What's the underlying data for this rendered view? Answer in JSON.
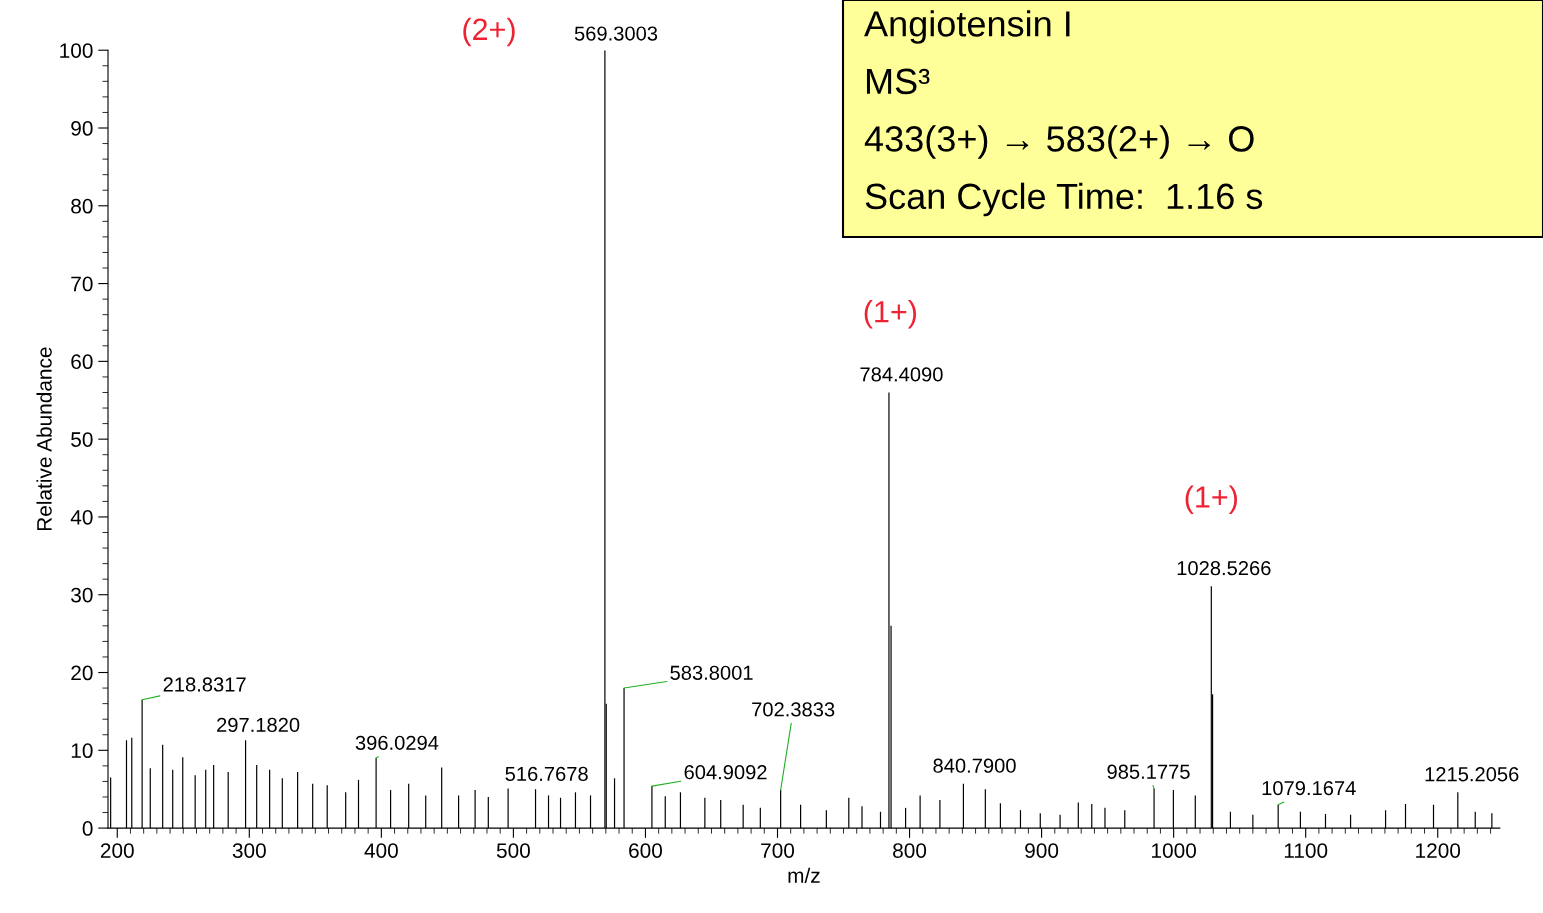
{
  "chart_data": {
    "type": "bar",
    "xlabel": "m/z",
    "ylabel": "Relative Abundance",
    "color": "#000000",
    "x": [
      195,
      207,
      211,
      218.8317,
      225,
      234.4,
      242,
      249.6,
      259,
      267,
      273,
      284,
      297.182,
      305.6,
      315.4,
      325,
      336.6,
      348,
      359,
      373,
      382.7,
      396.0294,
      407,
      420.7,
      433.6,
      445.7,
      458.5,
      471,
      481,
      496,
      516.7678,
      526.6,
      535.7,
      547,
      558.4,
      569.3003,
      570.3,
      576.6,
      583.8001,
      604.9092,
      615,
      626.5,
      645,
      657,
      674,
      687,
      702.3833,
      717.5,
      737,
      754,
      764,
      778,
      784.409,
      786,
      797,
      808,
      823,
      840.79,
      857.4,
      868.8,
      884,
      899,
      914,
      927.8,
      938,
      948,
      963,
      985.1775,
      999.8,
      1016.4,
      1028.5266,
      1029.5,
      1043,
      1060,
      1079.1674,
      1096,
      1115,
      1134,
      1160.5,
      1175.6,
      1196.8,
      1215.2056,
      1228.4,
      1241
    ],
    "values": [
      6.5,
      11.3,
      11.6,
      16.5,
      7.7,
      10.7,
      7.5,
      9.1,
      6.8,
      7.5,
      8.1,
      7.2,
      11.3,
      8.1,
      7.5,
      6.4,
      7.2,
      5.7,
      5.5,
      4.6,
      6.2,
      9.0,
      4.9,
      5.7,
      4.2,
      7.8,
      4.2,
      4.9,
      4.0,
      5.1,
      5.0,
      4.2,
      3.9,
      4.6,
      4.2,
      100,
      16.0,
      6.4,
      18.0,
      5.4,
      4.1,
      4.6,
      3.9,
      3.6,
      3.0,
      2.6,
      4.9,
      3.0,
      2.3,
      3.9,
      2.8,
      2.1,
      56.0,
      26.0,
      2.6,
      4.2,
      3.6,
      5.7,
      5.0,
      3.2,
      2.3,
      1.9,
      1.7,
      3.3,
      3.1,
      2.6,
      2.3,
      5.1,
      4.9,
      4.2,
      31.1,
      17.2,
      2.1,
      1.7,
      3.0,
      2.1,
      1.8,
      1.7,
      2.3,
      3.1,
      3.0,
      4.6,
      2.1,
      1.9
    ],
    "xlim": [
      193,
      1247
    ],
    "ylim": [
      0,
      100
    ],
    "xticks": [
      200,
      300,
      400,
      500,
      600,
      700,
      800,
      900,
      1000,
      1100,
      1200
    ],
    "yticks": [
      0,
      10,
      20,
      30,
      40,
      50,
      60,
      70,
      80,
      90,
      100
    ],
    "annotations": [
      "Angiotensin I",
      "MS³",
      "433(3+) → 583(2+) → O",
      "Scan Cycle Time:  1.16 s",
      {
        "text": "218.8317",
        "x": 218.8317,
        "y": 16.5
      },
      {
        "text": "297.1820",
        "x": 297.182,
        "y": 11.3
      },
      {
        "text": "396.0294",
        "x": 396.0294,
        "y": 9.0
      },
      {
        "text": "516.7678",
        "x": 516.7678,
        "y": 5.0
      },
      {
        "text": "569.3003",
        "x": 569.3003,
        "y": 100
      },
      {
        "text": "583.8001",
        "x": 583.8001,
        "y": 18.0
      },
      {
        "text": "604.9092",
        "x": 604.9092,
        "y": 5.4
      },
      {
        "text": "702.3833",
        "x": 702.3833,
        "y": 4.9
      },
      {
        "text": "784.4090",
        "x": 784.409,
        "y": 56.0
      },
      {
        "text": "840.7900",
        "x": 840.79,
        "y": 5.7
      },
      {
        "text": "985.1775",
        "x": 985.1775,
        "y": 5.1
      },
      {
        "text": "1028.5266",
        "x": 1028.5266,
        "y": 31.1
      },
      {
        "text": "1079.1674",
        "x": 1079.1674,
        "y": 3.0
      },
      {
        "text": "1215.2056",
        "x": 1215.2056,
        "y": 4.6
      },
      "(2+)",
      {
        "text": "(1+)",
        "x": 784.409,
        "y": 56.0
      },
      {
        "text": "(1+)",
        "x": 1028.5266,
        "y": 31.1
      }
    ]
  }
}
